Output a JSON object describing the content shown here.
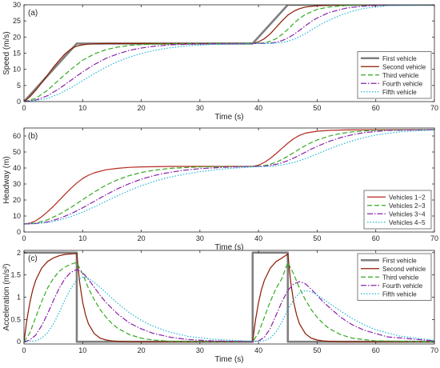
{
  "chart_data": [
    {
      "type": "line",
      "panel_label": "(a)",
      "xlabel": "Time (s)",
      "ylabel": "Speed (m/s)",
      "xlim": [
        0,
        70
      ],
      "ylim": [
        0,
        30
      ],
      "xticks": [
        0,
        10,
        20,
        30,
        40,
        50,
        60,
        70
      ],
      "yticks": [
        0,
        5,
        10,
        15,
        20,
        25,
        30
      ],
      "legend_position": "bottom-right",
      "grid": false,
      "series": [
        {
          "name": "First vehicle",
          "color": "#7f7f7f",
          "dash": "solid",
          "width": 2.6,
          "x": [
            0,
            9,
            39,
            45,
            70
          ],
          "y": [
            0,
            18,
            18,
            30,
            30
          ]
        },
        {
          "name": "Second vehicle",
          "color": "#8b1a00",
          "dash": "solid",
          "width": 1.2,
          "x": [
            0,
            1,
            2,
            3,
            4,
            5,
            6,
            7,
            8,
            9,
            10,
            11,
            12,
            14,
            16,
            20,
            25,
            30,
            39,
            40,
            41,
            42,
            43,
            44,
            45,
            46,
            47,
            48,
            50,
            53,
            56,
            60,
            70
          ],
          "y": [
            0,
            1.5,
            3.5,
            5.8,
            8.2,
            10.6,
            12.8,
            14.8,
            16.3,
            17.2,
            17.6,
            17.8,
            17.9,
            18,
            18,
            18,
            18,
            18,
            18,
            18.5,
            19.5,
            21,
            23,
            25,
            26.8,
            28,
            28.8,
            29.3,
            29.7,
            29.9,
            30,
            30,
            30
          ]
        },
        {
          "name": "Third vehicle",
          "color": "#33aa22",
          "dash": "6,3",
          "width": 1.2,
          "x": [
            0,
            2,
            4,
            6,
            8,
            10,
            12,
            14,
            16,
            18,
            20,
            25,
            30,
            39,
            41,
            42,
            43,
            44,
            45,
            46,
            47,
            48,
            50,
            52,
            55,
            60,
            70
          ],
          "y": [
            0,
            1,
            3.5,
            6.8,
            10,
            12.8,
            14.8,
            16.1,
            16.9,
            17.4,
            17.7,
            17.9,
            18,
            18,
            18.2,
            18.7,
            19.5,
            20.8,
            22.4,
            24.2,
            25.8,
            27,
            28.6,
            29.3,
            29.8,
            30,
            30
          ]
        },
        {
          "name": "Fourth vehicle",
          "color": "#8822aa",
          "dash": "7,2,1.5,2",
          "width": 1.2,
          "x": [
            0,
            2,
            4,
            6,
            8,
            10,
            12,
            14,
            16,
            18,
            20,
            22,
            25,
            30,
            39,
            42,
            43,
            44,
            45,
            46,
            47,
            48,
            49,
            50,
            52,
            55,
            58,
            62,
            70
          ],
          "y": [
            0,
            0.5,
            1.8,
            4,
            6.6,
            9.2,
            11.5,
            13.4,
            14.8,
            15.9,
            16.6,
            17.1,
            17.6,
            17.9,
            18,
            18.1,
            18.4,
            18.9,
            19.7,
            20.8,
            22.1,
            23.5,
            24.8,
            25.9,
            27.6,
            29,
            29.6,
            29.9,
            30
          ]
        },
        {
          "name": "Fifth vehicle",
          "color": "#1fb6d6",
          "dash": "1.5,2",
          "width": 1.2,
          "x": [
            0,
            2,
            4,
            6,
            8,
            10,
            12,
            14,
            16,
            18,
            20,
            22,
            25,
            28,
            32,
            39,
            42,
            44,
            45,
            46,
            47,
            48,
            49,
            50,
            51,
            52,
            54,
            56,
            58,
            62,
            70
          ],
          "y": [
            0,
            0.3,
            1,
            2.4,
            4.3,
            6.5,
            8.7,
            10.7,
            12.4,
            13.8,
            14.9,
            15.8,
            16.7,
            17.3,
            17.7,
            18,
            18,
            18.3,
            18.7,
            19.3,
            20.1,
            21.1,
            22.2,
            23.3,
            24.3,
            25.2,
            26.8,
            28,
            28.9,
            29.7,
            30
          ]
        }
      ]
    },
    {
      "type": "line",
      "panel_label": "(b)",
      "xlabel": "Time (s)",
      "ylabel": "Headway (m)",
      "xlim": [
        0,
        70
      ],
      "ylim": [
        0,
        65
      ],
      "xticks": [
        0,
        10,
        20,
        30,
        40,
        50,
        60,
        70
      ],
      "yticks": [
        0,
        10,
        20,
        30,
        40,
        50,
        60
      ],
      "legend_position": "bottom-right",
      "grid": false,
      "series": [
        {
          "name": "Vehicles 1−2",
          "color": "#b5281e",
          "dash": "solid",
          "width": 1.2,
          "x": [
            0,
            1,
            2,
            3,
            4,
            5,
            6,
            7,
            8,
            9,
            10,
            11,
            12,
            14,
            16,
            18,
            20,
            25,
            30,
            39,
            40,
            41,
            42,
            43,
            44,
            45,
            46,
            47,
            48,
            50,
            52,
            55,
            70
          ],
          "y": [
            5,
            5.5,
            7,
            9.5,
            12.6,
            16,
            19.8,
            23.6,
            27.3,
            30.6,
            33.4,
            35.5,
            37,
            38.9,
            39.8,
            40.4,
            40.7,
            41,
            41,
            41,
            41.8,
            43.5,
            46,
            49,
            52.3,
            55.5,
            58.3,
            60.4,
            61.8,
            63,
            63.5,
            63.8,
            64
          ]
        },
        {
          "name": "Vehicles 2−3",
          "color": "#33aa22",
          "dash": "6,3",
          "width": 1.2,
          "x": [
            0,
            2,
            4,
            6,
            8,
            10,
            12,
            14,
            16,
            18,
            20,
            22,
            25,
            30,
            39,
            40,
            41,
            42,
            43,
            44,
            45,
            46,
            47,
            48,
            49,
            50,
            52,
            54,
            56,
            60,
            70
          ],
          "y": [
            5,
            5.6,
            7.6,
            11,
            15.3,
            20.2,
            25,
            29.3,
            32.7,
            35.3,
            37.2,
            38.5,
            39.8,
            40.7,
            41,
            41.1,
            41.5,
            42.3,
            43.6,
            45.3,
            47.3,
            49.6,
            51.9,
            54,
            55.9,
            57.5,
            59.9,
            61.6,
            62.6,
            63.6,
            64
          ]
        },
        {
          "name": "Vehicles 3−4",
          "color": "#8822aa",
          "dash": "7,2,1.5,2",
          "width": 1.2,
          "x": [
            0,
            2,
            4,
            6,
            8,
            10,
            12,
            14,
            16,
            18,
            20,
            22,
            24,
            27,
            30,
            35,
            39,
            41,
            42,
            43,
            44,
            45,
            46,
            47,
            48,
            49,
            50,
            52,
            54,
            56,
            58,
            62,
            70
          ],
          "y": [
            5,
            5.3,
            6.3,
            8.4,
            11.4,
            15.1,
            19.2,
            23.3,
            27.1,
            30.3,
            33,
            35.1,
            36.7,
            38.5,
            39.6,
            40.6,
            41,
            41.2,
            41.6,
            42.3,
            43.3,
            44.6,
            46.2,
            48,
            49.9,
            51.8,
            53.5,
            56.6,
            59,
            60.8,
            62.1,
            63.5,
            64
          ]
        },
        {
          "name": "Vehicles 4−5",
          "color": "#1fb6d6",
          "dash": "1.5,2",
          "width": 1.2,
          "x": [
            0,
            2,
            4,
            6,
            8,
            10,
            12,
            14,
            16,
            18,
            20,
            22,
            24,
            27,
            30,
            34,
            39,
            42,
            43,
            44,
            45,
            46,
            47,
            48,
            49,
            50,
            51,
            52,
            54,
            56,
            58,
            60,
            64,
            70
          ],
          "y": [
            5,
            5.2,
            5.9,
            7.4,
            9.6,
            12.4,
            15.7,
            19.2,
            22.7,
            26,
            28.9,
            31.4,
            33.5,
            35.9,
            37.7,
            39.4,
            40.7,
            41.1,
            41.4,
            41.9,
            42.6,
            43.5,
            44.6,
            45.9,
            47.3,
            48.8,
            50.3,
            51.8,
            54.6,
            57,
            59,
            60.6,
            62.6,
            63.8
          ]
        }
      ]
    },
    {
      "type": "line",
      "panel_label": "(c)",
      "xlabel": "Time (s)",
      "ylabel": "Acceleration (m/s²)",
      "xlim": [
        0,
        70
      ],
      "ylim": [
        -0.05,
        2.05
      ],
      "xticks": [
        0,
        10,
        20,
        30,
        40,
        50,
        60,
        70
      ],
      "yticks": [
        0,
        0.5,
        1,
        1.5,
        2
      ],
      "legend_position": "top-right",
      "grid": false,
      "series": [
        {
          "name": "First vehicle",
          "color": "#7f7f7f",
          "dash": "solid",
          "width": 2.6,
          "x": [
            0,
            9,
            9,
            39,
            39,
            45,
            45,
            70
          ],
          "y": [
            2,
            2,
            0,
            0,
            2,
            2,
            0,
            0
          ]
        },
        {
          "name": "Second vehicle",
          "color": "#8b1a00",
          "dash": "solid",
          "width": 1.2,
          "x": [
            0,
            0.5,
            1,
            1.5,
            2,
            3,
            4,
            5,
            6,
            7,
            8,
            9,
            9.5,
            10,
            10.5,
            11,
            12,
            13,
            14,
            15,
            16,
            18,
            20,
            39,
            39.5,
            40,
            40.5,
            41,
            42,
            43,
            44,
            45,
            45.5,
            46,
            46.5,
            47,
            48,
            49,
            50,
            51,
            52,
            54,
            56,
            70
          ],
          "y": [
            0,
            0.5,
            0.88,
            1.17,
            1.38,
            1.65,
            1.8,
            1.88,
            1.93,
            1.96,
            1.97,
            1.98,
            1.33,
            0.89,
            0.6,
            0.4,
            0.18,
            0.08,
            0.04,
            0.02,
            0.01,
            0,
            0,
            0,
            0.5,
            0.88,
            1.17,
            1.38,
            1.65,
            1.8,
            1.88,
            1.97,
            1.33,
            0.89,
            0.6,
            0.4,
            0.18,
            0.08,
            0.04,
            0.02,
            0.01,
            0,
            0,
            0
          ]
        },
        {
          "name": "Third vehicle",
          "color": "#33aa22",
          "dash": "6,3",
          "width": 1.2,
          "x": [
            0,
            1,
            2,
            3,
            4,
            5,
            6,
            7,
            8,
            9,
            10,
            11,
            12,
            13,
            14,
            15,
            16,
            18,
            20,
            22,
            25,
            39,
            40,
            41,
            42,
            43,
            44,
            45,
            46,
            47,
            48,
            49,
            50,
            51,
            52,
            54,
            56,
            60,
            70
          ],
          "y": [
            0,
            0.2,
            0.55,
            0.9,
            1.2,
            1.42,
            1.58,
            1.68,
            1.74,
            1.78,
            1.52,
            1.2,
            0.94,
            0.72,
            0.55,
            0.41,
            0.3,
            0.16,
            0.08,
            0.04,
            0.01,
            0,
            0.2,
            0.55,
            0.9,
            1.2,
            1.42,
            1.78,
            1.52,
            1.2,
            0.94,
            0.72,
            0.55,
            0.41,
            0.3,
            0.16,
            0.08,
            0.02,
            0
          ]
        },
        {
          "name": "Fourth vehicle",
          "color": "#8822aa",
          "dash": "7,2,1.5,2",
          "width": 1.2,
          "x": [
            0,
            1,
            2,
            3,
            4,
            5,
            6,
            7,
            8,
            9,
            10,
            11,
            12,
            13,
            14,
            16,
            18,
            20,
            22,
            25,
            28,
            32,
            39,
            40,
            41,
            42,
            43,
            44,
            45,
            46,
            47,
            48,
            49,
            50,
            51,
            52,
            54,
            56,
            58,
            62,
            70
          ],
          "y": [
            0,
            0.04,
            0.15,
            0.36,
            0.62,
            0.92,
            1.2,
            1.42,
            1.56,
            1.62,
            1.55,
            1.4,
            1.22,
            1.04,
            0.88,
            0.62,
            0.42,
            0.29,
            0.19,
            0.1,
            0.05,
            0.02,
            0,
            0.02,
            0.1,
            0.3,
            0.6,
            0.9,
            1.15,
            1.3,
            1.35,
            1.3,
            1.18,
            1.04,
            0.9,
            0.78,
            0.55,
            0.38,
            0.26,
            0.11,
            0.02
          ]
        },
        {
          "name": "Fifth vehicle",
          "color": "#1fb6d6",
          "dash": "1.5,2",
          "width": 1.2,
          "x": [
            0,
            2,
            3,
            4,
            5,
            6,
            7,
            8,
            9,
            10,
            11,
            12,
            13,
            14,
            16,
            18,
            20,
            22,
            25,
            28,
            32,
            36,
            39,
            41,
            42,
            43,
            44,
            45,
            46,
            47,
            48,
            49,
            50,
            51,
            52,
            54,
            56,
            58,
            60,
            64,
            70
          ],
          "y": [
            0,
            0.02,
            0.08,
            0.2,
            0.4,
            0.65,
            0.95,
            1.2,
            1.38,
            1.45,
            1.42,
            1.33,
            1.22,
            1.1,
            0.86,
            0.65,
            0.48,
            0.35,
            0.21,
            0.12,
            0.06,
            0.03,
            0.01,
            0.02,
            0.08,
            0.22,
            0.45,
            0.72,
            0.95,
            1.1,
            1.15,
            1.12,
            1.05,
            0.96,
            0.87,
            0.69,
            0.52,
            0.38,
            0.27,
            0.13,
            0.03
          ]
        }
      ]
    }
  ]
}
